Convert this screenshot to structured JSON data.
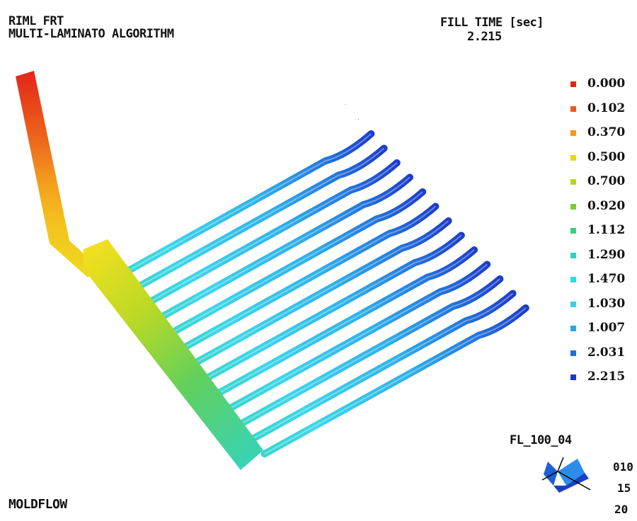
{
  "header": {
    "line1": "RIML FRT",
    "line2": "MULTI-LAMINATO ALGORITHM"
  },
  "fill_time": {
    "label": "FILL TIME [sec]",
    "value": "2.215"
  },
  "legend": [
    {
      "value": "0.000",
      "color": "#d72a1a"
    },
    {
      "value": "0.102",
      "color": "#ea5a1b"
    },
    {
      "value": "0.370",
      "color": "#f29a1c"
    },
    {
      "value": "0.500",
      "color": "#ecd21e"
    },
    {
      "value": "0.700",
      "color": "#b8d624"
    },
    {
      "value": "0.920",
      "color": "#7ccd3c"
    },
    {
      "value": "1.112",
      "color": "#3fcc86"
    },
    {
      "value": "1.290",
      "color": "#2fd2c2"
    },
    {
      "value": "1.470",
      "color": "#36d6e2"
    },
    {
      "value": "1.030",
      "color": "#3ccdea"
    },
    {
      "value": "1.007",
      "color": "#2aa6e6"
    },
    {
      "value": "2.031",
      "color": "#1f6fd8"
    },
    {
      "value": "2.215",
      "color": "#1b36c8"
    }
  ],
  "view": {
    "name": "FL_100_04",
    "axis_values": [
      "010",
      "15",
      "20"
    ]
  },
  "brand": "MOLDFLOW"
}
